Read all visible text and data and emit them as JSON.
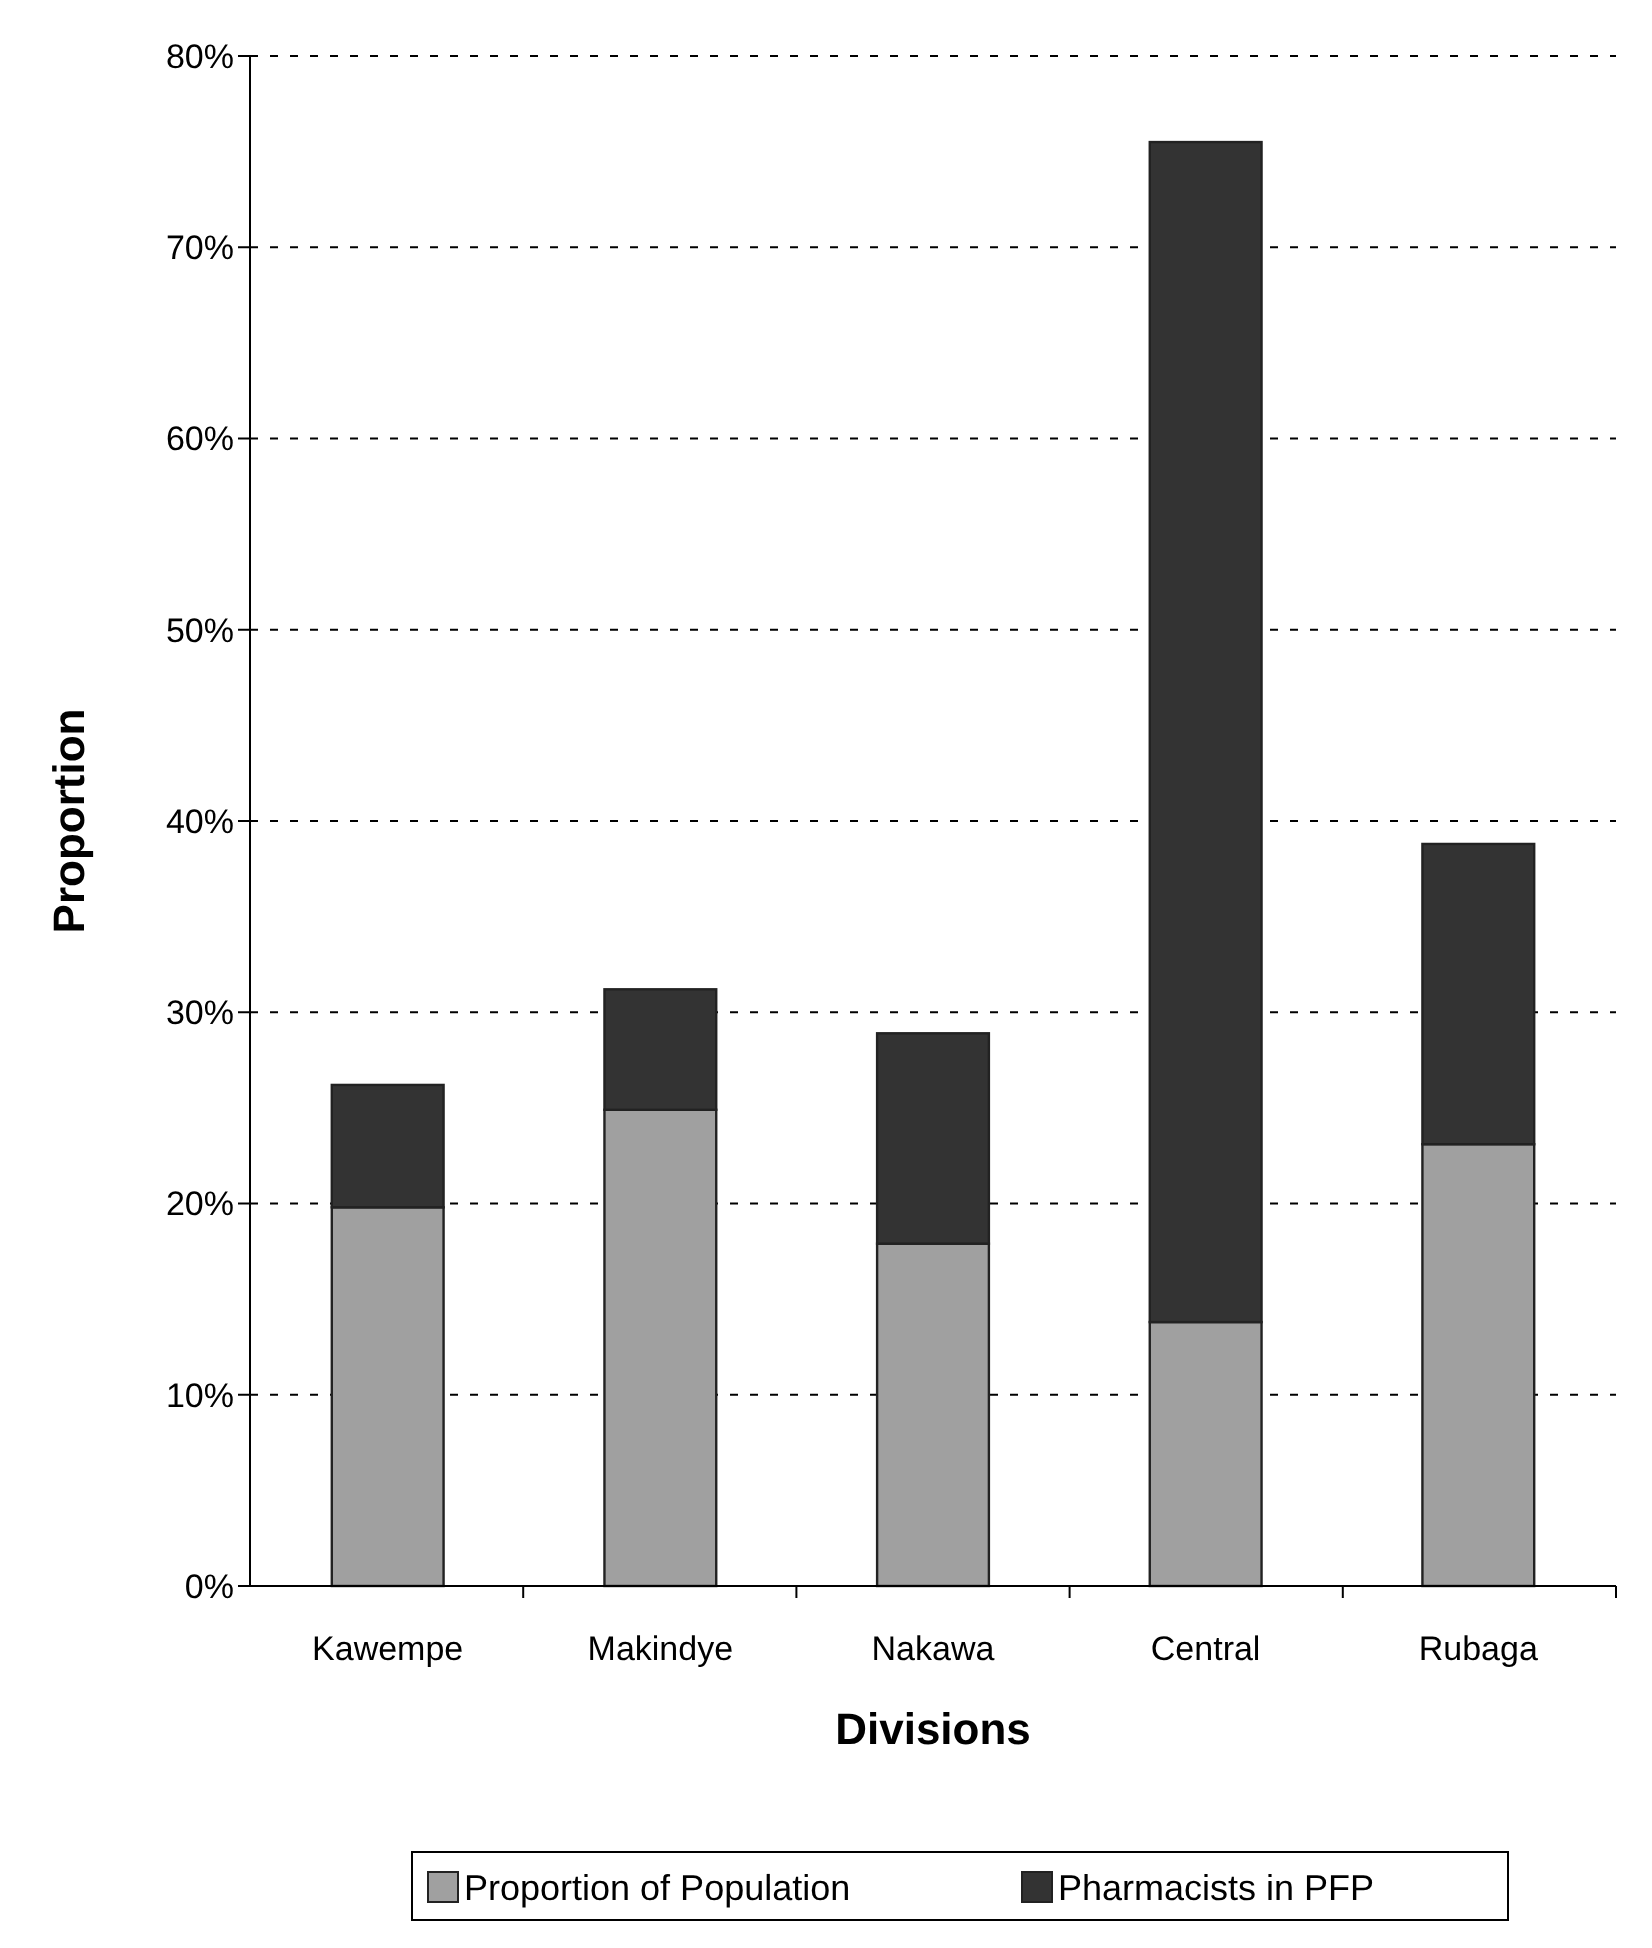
{
  "chart_data": {
    "type": "bar",
    "stacked": true,
    "xlabel": "Divisions",
    "ylabel": "Proportion",
    "categories": [
      "Kawempe",
      "Makindye",
      "Nakawa",
      "Central",
      "Rubaga"
    ],
    "series": [
      {
        "name": "Proportion of Population",
        "color": "#a0a0a0",
        "values": [
          19.8,
          24.9,
          17.9,
          13.8,
          23.1
        ]
      },
      {
        "name": "Pharmacists in PFP",
        "color": "#333333",
        "values": [
          6.4,
          6.3,
          11.0,
          61.7,
          15.7
        ]
      }
    ],
    "ylim": [
      0,
      80
    ],
    "yticks": [
      {
        "value": 0,
        "label": "0%"
      },
      {
        "value": 10,
        "label": "10%"
      },
      {
        "value": 20,
        "label": "20%"
      },
      {
        "value": 30,
        "label": "30%"
      },
      {
        "value": 40,
        "label": "40%"
      },
      {
        "value": 50,
        "label": "50%"
      },
      {
        "value": 60,
        "label": "60%"
      },
      {
        "value": 70,
        "label": "70%"
      },
      {
        "value": 80,
        "label": "80%"
      }
    ],
    "grid": "y",
    "legend": "bottom"
  }
}
